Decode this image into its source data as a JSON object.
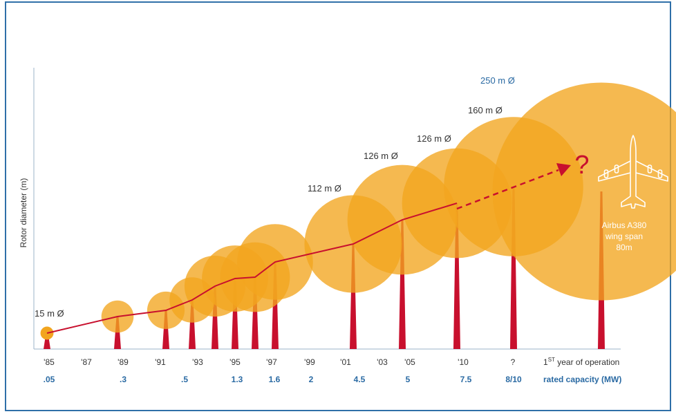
{
  "chart_data": {
    "type": "scatter",
    "ylabel": "Rotor diameter (m)",
    "x_axis_title": "1ST year of operation",
    "x_axis_title_base": "1",
    "x_axis_title_sup": "ST",
    "x_axis_title_rest": " year of operation",
    "capacity_axis_title": "rated capacity (MW)",
    "year_ticks": [
      "'85",
      "'87",
      "'89",
      "'91",
      "'93",
      "'95",
      "'97",
      "'99",
      "'01",
      "'03",
      "'05",
      "'10",
      "?"
    ],
    "capacity_ticks": [
      ".05",
      ".3",
      ".5",
      "1.3",
      "1.6",
      "2",
      "4.5",
      "5",
      "7.5",
      "8/10"
    ],
    "turbines": [
      {
        "year": "1985",
        "capacity_mw": "0.05",
        "diameter_m": 15
      },
      {
        "year": "1989",
        "capacity_mw": "0.3",
        "diameter_m": 37
      },
      {
        "year": "1991",
        "capacity_mw": "0.5",
        "diameter_m": 43
      },
      {
        "year": "1993",
        "capacity_mw": "0.5",
        "diameter_m": 52
      },
      {
        "year": "1994",
        "capacity_mw": "1.3",
        "diameter_m": 70
      },
      {
        "year": "1995",
        "capacity_mw": "1.3",
        "diameter_m": 76
      },
      {
        "year": "1996",
        "capacity_mw": "1.6",
        "diameter_m": 80
      },
      {
        "year": "1997",
        "capacity_mw": "2",
        "diameter_m": 87
      },
      {
        "year": "2001",
        "capacity_mw": "4.5",
        "diameter_m": 112
      },
      {
        "year": "2005",
        "capacity_mw": "5",
        "diameter_m": 126
      },
      {
        "year": "2010",
        "capacity_mw": "7.5",
        "diameter_m": 126
      },
      {
        "year": "?",
        "capacity_mw": "8/10",
        "diameter_m": 160
      },
      {
        "year": "?",
        "capacity_mw": "8/10",
        "diameter_m": 250
      }
    ],
    "diameter_labels": [
      "15 m Ø",
      "112 m Ø",
      "126 m Ø",
      "126 m Ø",
      "160 m Ø",
      "250 m Ø"
    ],
    "future_marker": "?",
    "comparison": {
      "line1": "Airbus A380",
      "line2": "wing span",
      "line3": "80m"
    },
    "colors": {
      "circle": "#f2a51f",
      "tower": "#c8102e",
      "trend": "#c8102e",
      "frame": "#2f6fa8",
      "capacity_text": "#2a6aa3"
    }
  }
}
